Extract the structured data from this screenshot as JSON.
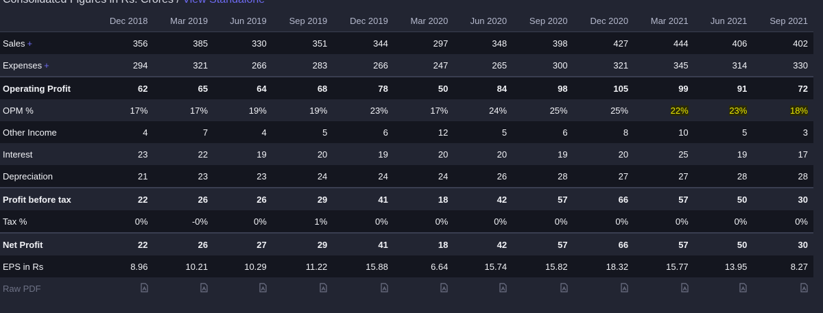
{
  "caption": {
    "text": "Consolidated Figures in Rs. Crores /",
    "link": "View Standalone"
  },
  "columns": [
    "Dec 2018",
    "Mar 2019",
    "Jun 2019",
    "Sep 2019",
    "Dec 2019",
    "Mar 2020",
    "Jun 2020",
    "Sep 2020",
    "Dec 2020",
    "Mar 2021",
    "Jun 2021",
    "Sep 2021"
  ],
  "rows": [
    {
      "label": "Sales",
      "expandable": true,
      "values": [
        "356",
        "385",
        "330",
        "351",
        "344",
        "297",
        "348",
        "398",
        "427",
        "444",
        "406",
        "402"
      ]
    },
    {
      "label": "Expenses",
      "expandable": true,
      "values": [
        "294",
        "321",
        "266",
        "283",
        "266",
        "247",
        "265",
        "300",
        "321",
        "345",
        "314",
        "330"
      ]
    },
    {
      "label": "Operating Profit",
      "bold": true,
      "values": [
        "62",
        "65",
        "64",
        "68",
        "78",
        "50",
        "84",
        "98",
        "105",
        "99",
        "91",
        "72"
      ]
    },
    {
      "label": "OPM %",
      "values": [
        "17%",
        "17%",
        "19%",
        "19%",
        "23%",
        "17%",
        "24%",
        "25%",
        "25%",
        "22%",
        "23%",
        "18%"
      ],
      "highlighted": [
        "Mar 2021",
        "Jun 2021",
        "Sep 2021"
      ]
    },
    {
      "label": "Other Income",
      "values": [
        "4",
        "7",
        "4",
        "5",
        "6",
        "12",
        "5",
        "6",
        "8",
        "10",
        "5",
        "3"
      ]
    },
    {
      "label": "Interest",
      "values": [
        "23",
        "22",
        "19",
        "20",
        "19",
        "20",
        "20",
        "19",
        "20",
        "25",
        "19",
        "17"
      ]
    },
    {
      "label": "Depreciation",
      "values": [
        "21",
        "23",
        "23",
        "24",
        "24",
        "24",
        "26",
        "28",
        "27",
        "27",
        "28",
        "28"
      ]
    },
    {
      "label": "Profit before tax",
      "bold": true,
      "values": [
        "22",
        "26",
        "26",
        "29",
        "41",
        "18",
        "42",
        "57",
        "66",
        "57",
        "50",
        "30"
      ]
    },
    {
      "label": "Tax %",
      "values": [
        "0%",
        "-0%",
        "0%",
        "1%",
        "0%",
        "0%",
        "0%",
        "0%",
        "0%",
        "0%",
        "0%",
        "0%"
      ]
    },
    {
      "label": "Net Profit",
      "bold": true,
      "values": [
        "22",
        "26",
        "27",
        "29",
        "41",
        "18",
        "42",
        "57",
        "66",
        "57",
        "50",
        "30"
      ]
    },
    {
      "label": "EPS in Rs",
      "values": [
        "8.96",
        "10.21",
        "10.29",
        "11.22",
        "15.88",
        "6.64",
        "15.74",
        "15.82",
        "18.32",
        "15.77",
        "13.95",
        "8.27"
      ]
    }
  ],
  "raw_pdf": {
    "label": "Raw PDF",
    "icon": "pdf-file-icon"
  },
  "colors": {
    "accent": "#6d6af0",
    "highlight_text": "#e8e600",
    "highlight_bg": "#2a2a08"
  }
}
